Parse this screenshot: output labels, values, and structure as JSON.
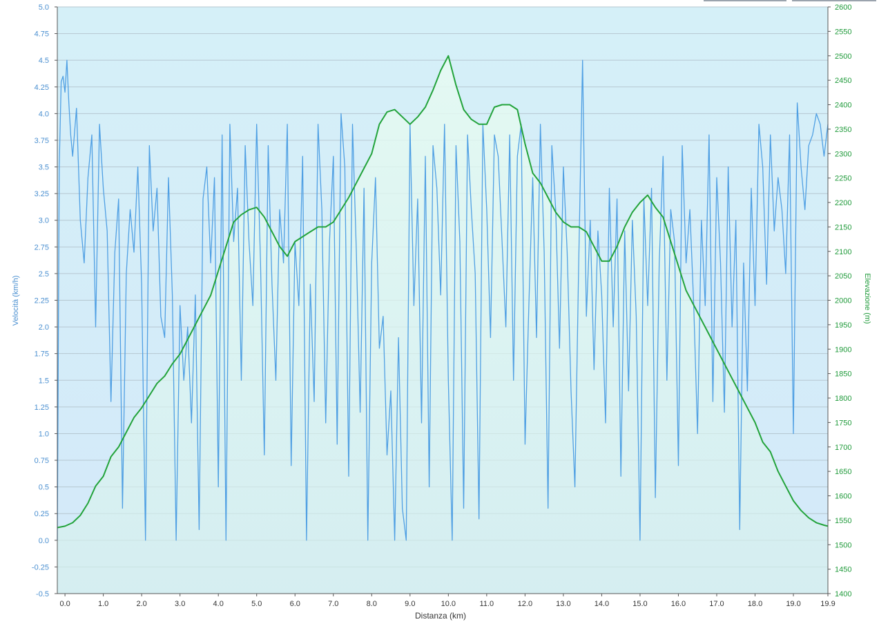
{
  "chart_data": {
    "type": "line",
    "xlabel": "Distanza  (km)",
    "ylabel_left": "Velocità (km/h)",
    "ylabel_right": "Elevazione (m)",
    "xlim": [
      -0.2,
      19.9
    ],
    "ylim_left": [
      -0.5,
      5.0
    ],
    "ylim_right": [
      1400,
      2600
    ],
    "x_ticks": [
      "0.0",
      "1.0",
      "2.0",
      "3.0",
      "4.0",
      "5.0",
      "6.0",
      "7.0",
      "8.0",
      "9.0",
      "10.0",
      "11.0",
      "12.0",
      "13.0",
      "14.0",
      "15.0",
      "16.0",
      "17.0",
      "18.0",
      "19.0",
      "19.9"
    ],
    "y_left_ticks": [
      "5.0",
      "4.75",
      "4.5",
      "4.25",
      "4.0",
      "3.75",
      "3.5",
      "3.25",
      "3.0",
      "2.75",
      "2.5",
      "2.25",
      "2.0",
      "1.75",
      "1.5",
      "1.25",
      "1.0",
      "0.75",
      "0.5",
      "0.25",
      "0.0",
      "-0.25",
      "-0.5"
    ],
    "y_right_ticks": [
      "2600",
      "2550",
      "2500",
      "2450",
      "2400",
      "2350",
      "2300",
      "2250",
      "2200",
      "2150",
      "2100",
      "2050",
      "2000",
      "1950",
      "1900",
      "1850",
      "1800",
      "1750",
      "1700",
      "1650",
      "1600",
      "1550",
      "1500",
      "1450",
      "1400"
    ],
    "grid": true,
    "background_gradient": [
      "#d6f1f8",
      "#d4ecf8"
    ],
    "series": [
      {
        "name": "Velocità (km/h)",
        "axis": "left",
        "color": "#4f9fe3",
        "x": [
          -0.2,
          -0.15,
          -0.1,
          -0.05,
          0.0,
          0.05,
          0.1,
          0.15,
          0.2,
          0.3,
          0.4,
          0.5,
          0.6,
          0.7,
          0.8,
          0.9,
          1.0,
          1.1,
          1.2,
          1.3,
          1.4,
          1.5,
          1.6,
          1.7,
          1.8,
          1.9,
          2.0,
          2.1,
          2.2,
          2.3,
          2.4,
          2.5,
          2.6,
          2.7,
          2.8,
          2.9,
          3.0,
          3.1,
          3.2,
          3.3,
          3.4,
          3.5,
          3.6,
          3.7,
          3.8,
          3.9,
          4.0,
          4.1,
          4.2,
          4.3,
          4.4,
          4.5,
          4.6,
          4.7,
          4.8,
          4.9,
          5.0,
          5.1,
          5.2,
          5.3,
          5.4,
          5.5,
          5.6,
          5.7,
          5.8,
          5.9,
          6.0,
          6.1,
          6.2,
          6.3,
          6.4,
          6.5,
          6.6,
          6.7,
          6.8,
          6.9,
          7.0,
          7.1,
          7.2,
          7.3,
          7.4,
          7.5,
          7.6,
          7.7,
          7.8,
          7.9,
          8.0,
          8.1,
          8.2,
          8.3,
          8.4,
          8.5,
          8.6,
          8.7,
          8.8,
          8.9,
          9.0,
          9.1,
          9.2,
          9.3,
          9.4,
          9.5,
          9.6,
          9.7,
          9.8,
          9.9,
          10.0,
          10.1,
          10.2,
          10.3,
          10.4,
          10.5,
          10.6,
          10.7,
          10.8,
          10.9,
          11.0,
          11.1,
          11.2,
          11.3,
          11.4,
          11.5,
          11.6,
          11.7,
          11.8,
          11.9,
          12.0,
          12.1,
          12.2,
          12.3,
          12.4,
          12.5,
          12.6,
          12.7,
          12.8,
          12.9,
          13.0,
          13.1,
          13.2,
          13.3,
          13.4,
          13.5,
          13.6,
          13.7,
          13.8,
          13.9,
          14.0,
          14.1,
          14.2,
          14.3,
          14.4,
          14.5,
          14.6,
          14.7,
          14.8,
          14.9,
          15.0,
          15.1,
          15.2,
          15.3,
          15.4,
          15.5,
          15.6,
          15.7,
          15.8,
          15.9,
          16.0,
          16.1,
          16.2,
          16.3,
          16.4,
          16.5,
          16.6,
          16.7,
          16.8,
          16.9,
          17.0,
          17.1,
          17.2,
          17.3,
          17.4,
          17.5,
          17.6,
          17.7,
          17.8,
          17.9,
          18.0,
          18.1,
          18.2,
          18.3,
          18.4,
          18.5,
          18.6,
          18.7,
          18.8,
          18.9,
          19.0,
          19.1,
          19.2,
          19.3,
          19.4,
          19.5,
          19.6,
          19.7,
          19.8,
          19.9
        ],
        "y": [
          0.0,
          3.5,
          4.3,
          4.35,
          4.2,
          4.5,
          4.1,
          3.8,
          3.6,
          4.05,
          3.0,
          2.6,
          3.4,
          3.8,
          2.0,
          3.9,
          3.3,
          2.9,
          1.3,
          2.7,
          3.2,
          0.3,
          2.5,
          3.1,
          2.7,
          3.5,
          2.4,
          0.0,
          3.7,
          2.9,
          3.3,
          2.1,
          1.9,
          3.4,
          2.3,
          0.0,
          2.2,
          1.5,
          2.0,
          1.1,
          2.3,
          0.1,
          3.2,
          3.5,
          2.6,
          3.4,
          0.5,
          3.8,
          0.0,
          3.9,
          2.8,
          3.3,
          1.5,
          3.7,
          2.8,
          2.2,
          3.9,
          2.6,
          0.8,
          3.7,
          2.4,
          1.5,
          3.1,
          2.6,
          3.9,
          0.7,
          2.8,
          2.2,
          3.6,
          0.0,
          2.4,
          1.3,
          3.9,
          3.1,
          1.1,
          2.8,
          3.6,
          0.9,
          4.0,
          3.5,
          0.6,
          3.9,
          2.7,
          1.2,
          3.3,
          0.0,
          2.6,
          3.4,
          1.8,
          2.1,
          0.8,
          1.4,
          0.0,
          1.9,
          0.3,
          0.0,
          3.9,
          2.2,
          3.2,
          1.1,
          3.6,
          0.5,
          3.7,
          3.3,
          2.3,
          3.9,
          1.5,
          0.0,
          3.7,
          2.8,
          0.3,
          3.8,
          3.1,
          2.5,
          0.2,
          3.9,
          3.1,
          1.9,
          3.8,
          3.6,
          2.8,
          2.0,
          3.8,
          1.5,
          3.6,
          3.9,
          0.9,
          2.2,
          3.4,
          1.9,
          3.9,
          2.7,
          0.3,
          3.7,
          3.1,
          1.8,
          3.5,
          2.7,
          1.4,
          0.5,
          2.6,
          4.5,
          2.1,
          3.0,
          1.6,
          2.9,
          2.3,
          1.1,
          3.3,
          2.0,
          3.2,
          0.6,
          2.9,
          1.4,
          3.0,
          2.1,
          0.0,
          3.2,
          2.2,
          3.3,
          0.4,
          2.6,
          3.6,
          1.5,
          3.1,
          2.8,
          0.7,
          3.7,
          2.6,
          3.1,
          2.2,
          1.0,
          3.0,
          2.2,
          3.8,
          1.3,
          3.4,
          2.6,
          1.2,
          3.5,
          2.0,
          3.0,
          0.1,
          2.6,
          1.4,
          3.3,
          2.2,
          3.9,
          3.5,
          2.4,
          3.8,
          2.9,
          3.4,
          3.1,
          2.5,
          3.8,
          1.0,
          4.1,
          3.5,
          3.1,
          3.7,
          3.8,
          4.0,
          3.9,
          3.6,
          3.9
        ]
      },
      {
        "name": "Elevazione (m)",
        "axis": "right",
        "color": "#22a33a",
        "x": [
          -0.2,
          0.0,
          0.2,
          0.4,
          0.6,
          0.8,
          1.0,
          1.2,
          1.4,
          1.6,
          1.8,
          2.0,
          2.2,
          2.4,
          2.6,
          2.8,
          3.0,
          3.2,
          3.4,
          3.6,
          3.8,
          4.0,
          4.2,
          4.4,
          4.6,
          4.8,
          5.0,
          5.2,
          5.4,
          5.6,
          5.8,
          6.0,
          6.2,
          6.4,
          6.6,
          6.8,
          7.0,
          7.2,
          7.4,
          7.6,
          7.8,
          8.0,
          8.2,
          8.4,
          8.6,
          8.8,
          9.0,
          9.2,
          9.4,
          9.6,
          9.8,
          10.0,
          10.2,
          10.4,
          10.6,
          10.8,
          11.0,
          11.2,
          11.4,
          11.6,
          11.8,
          12.0,
          12.2,
          12.4,
          12.6,
          12.8,
          13.0,
          13.2,
          13.4,
          13.6,
          13.8,
          14.0,
          14.2,
          14.4,
          14.6,
          14.8,
          15.0,
          15.2,
          15.4,
          15.6,
          15.8,
          16.0,
          16.2,
          16.4,
          16.6,
          16.8,
          17.0,
          17.2,
          17.4,
          17.6,
          17.8,
          18.0,
          18.2,
          18.4,
          18.6,
          18.8,
          19.0,
          19.2,
          19.4,
          19.6,
          19.8,
          19.9
        ],
        "y": [
          1535,
          1538,
          1545,
          1560,
          1585,
          1620,
          1640,
          1680,
          1700,
          1730,
          1760,
          1780,
          1805,
          1830,
          1845,
          1870,
          1890,
          1920,
          1950,
          1980,
          2010,
          2060,
          2110,
          2160,
          2175,
          2185,
          2190,
          2170,
          2140,
          2110,
          2090,
          2120,
          2130,
          2140,
          2150,
          2150,
          2160,
          2185,
          2210,
          2240,
          2270,
          2300,
          2360,
          2385,
          2390,
          2375,
          2360,
          2375,
          2395,
          2430,
          2470,
          2500,
          2440,
          2390,
          2370,
          2360,
          2360,
          2395,
          2400,
          2400,
          2390,
          2320,
          2260,
          2240,
          2210,
          2180,
          2160,
          2150,
          2150,
          2140,
          2110,
          2080,
          2080,
          2110,
          2150,
          2180,
          2200,
          2215,
          2190,
          2170,
          2120,
          2070,
          2020,
          1990,
          1960,
          1930,
          1900,
          1870,
          1840,
          1810,
          1780,
          1750,
          1710,
          1690,
          1650,
          1620,
          1590,
          1570,
          1555,
          1545,
          1540,
          1538
        ]
      }
    ]
  }
}
